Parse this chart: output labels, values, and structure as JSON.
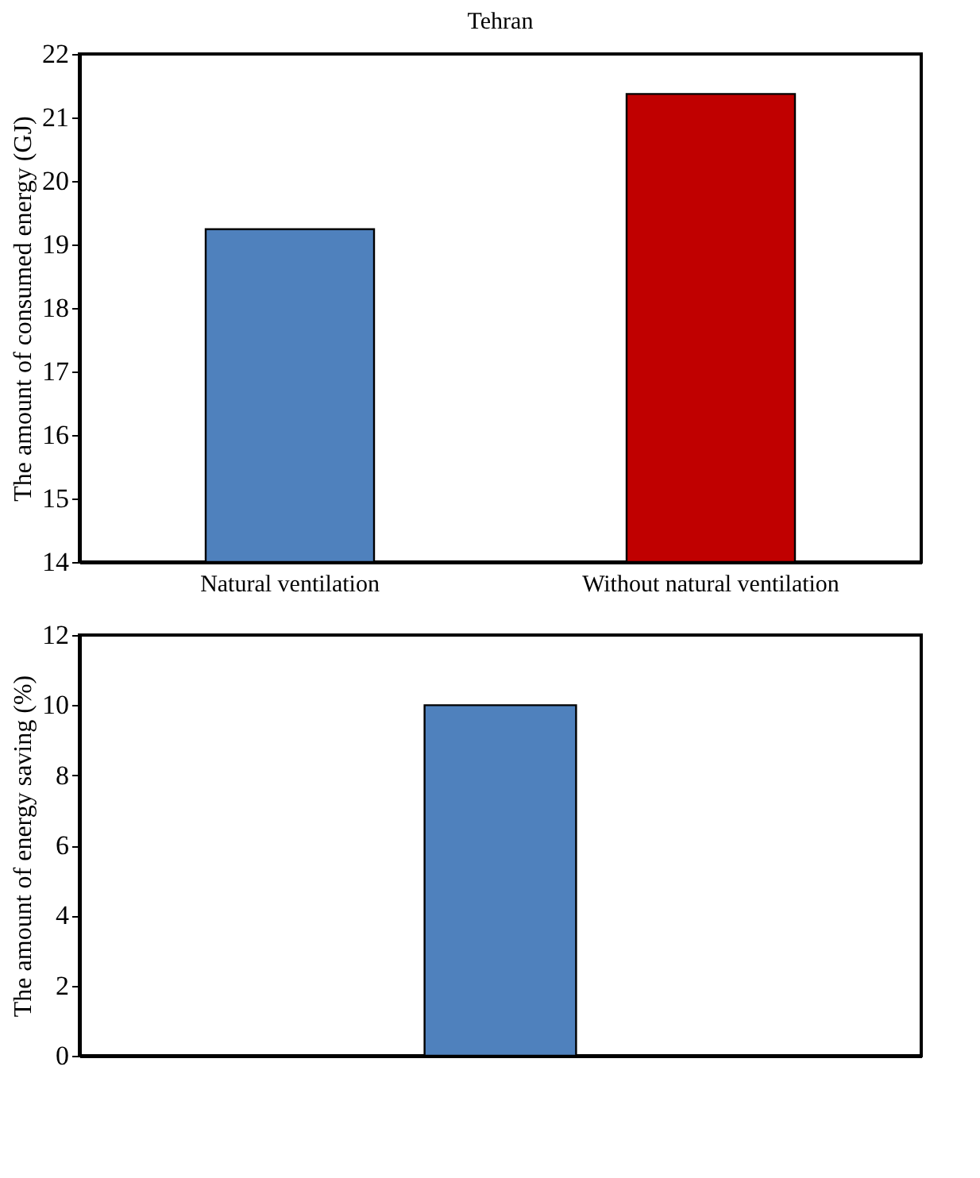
{
  "chart_data": [
    {
      "type": "bar",
      "title": "Tehran",
      "ylabel": "The amount of consumed energy (GJ)",
      "categories": [
        "Natural ventilation",
        "Without natural ventilation"
      ],
      "values": [
        19.24,
        21.37
      ],
      "colors": [
        "#4f81bd",
        "#c00000"
      ],
      "ylim": [
        14,
        22
      ],
      "yticks": [
        14,
        15,
        16,
        17,
        18,
        19,
        20,
        21,
        22
      ],
      "grid": false
    },
    {
      "type": "bar",
      "ylabel": "The amount of energy saving (%)",
      "categories": [
        null
      ],
      "values": [
        10
      ],
      "colors": [
        "#4f81bd"
      ],
      "ylim": [
        0,
        12
      ],
      "yticks": [
        0,
        2,
        4,
        6,
        8,
        10,
        12
      ],
      "grid": false
    }
  ]
}
